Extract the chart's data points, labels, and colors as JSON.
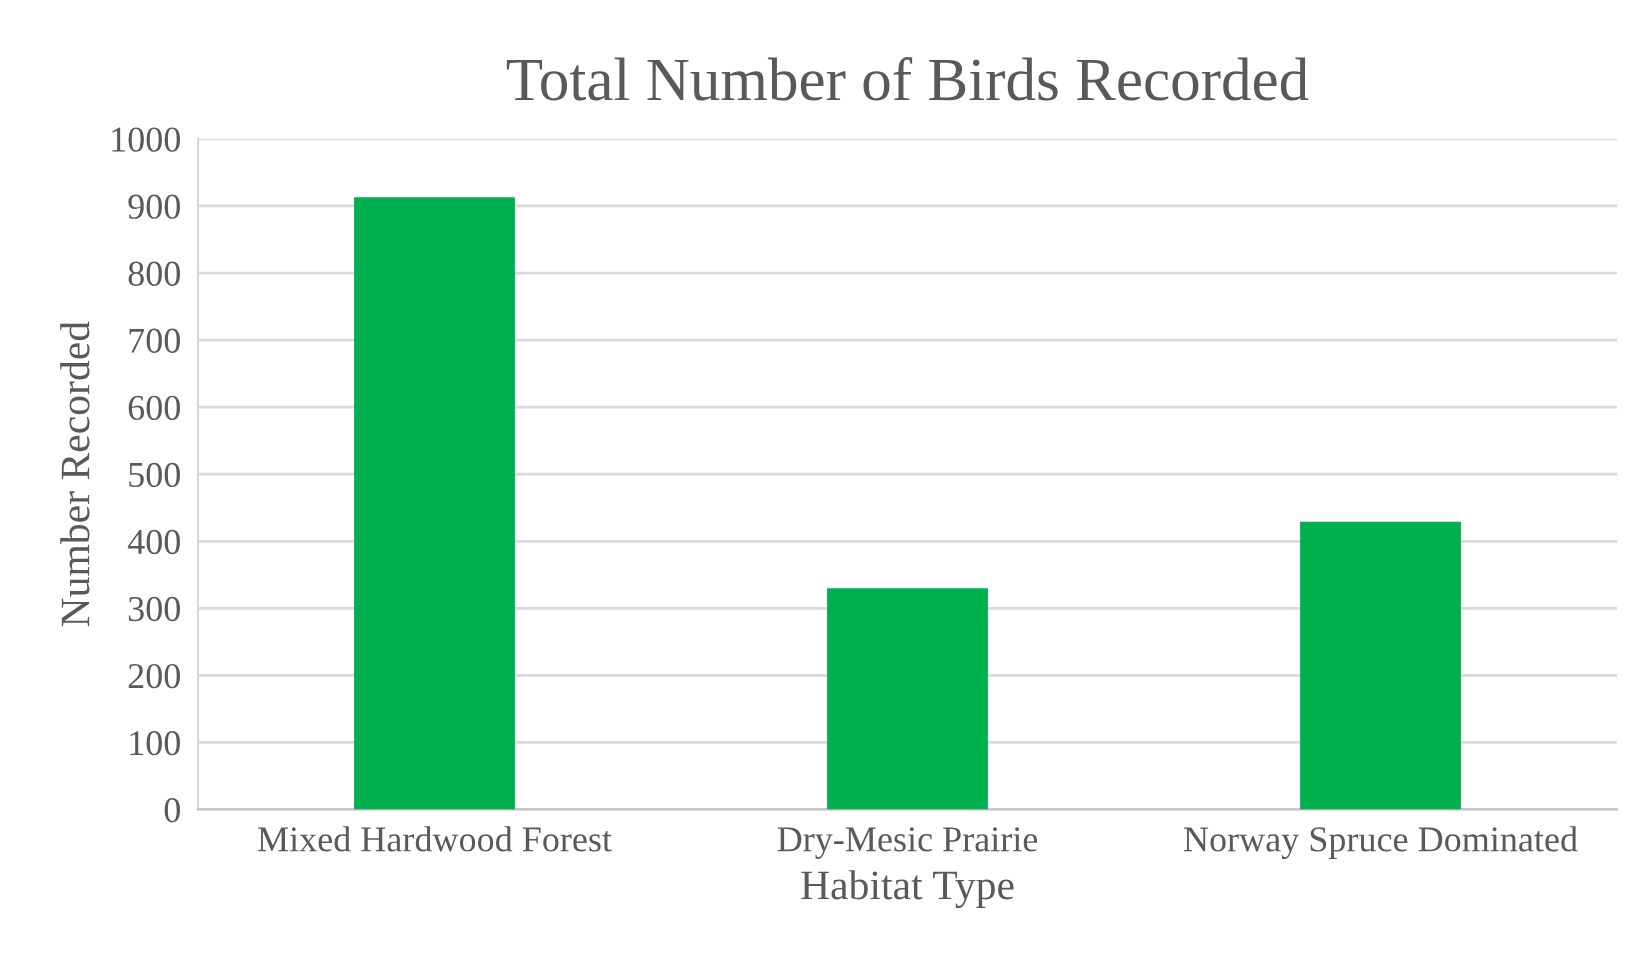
{
  "chart_data": {
    "type": "bar",
    "title": "Total Number of Birds Recorded",
    "xlabel": "Habitat Type",
    "ylabel": "Number Recorded",
    "categories": [
      "Mixed Hardwood Forest",
      "Dry-Mesic Prairie",
      "Norway Spruce Dominated"
    ],
    "values": [
      913,
      330,
      429
    ],
    "color": "#00b050",
    "ylim": [
      0,
      1000
    ],
    "yticks": [
      0,
      100,
      200,
      300,
      400,
      500,
      600,
      700,
      800,
      900,
      1000
    ],
    "grid": "y",
    "legend": false
  }
}
